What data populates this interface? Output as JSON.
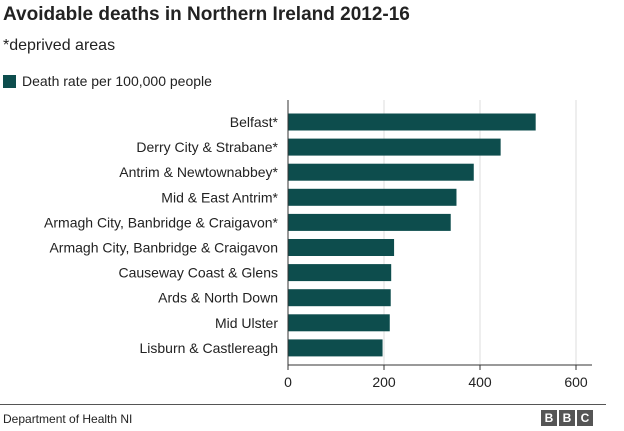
{
  "title": "Avoidable deaths in Northern Ireland 2012-16",
  "subtitle": "*deprived areas",
  "source": "Department of Health NI",
  "logo": [
    "B",
    "B",
    "C"
  ],
  "colors": {
    "bar": "#0d4d4d",
    "grid": "#dddddd",
    "axis": "#333333",
    "text": "#222222"
  },
  "chart_data": {
    "type": "bar",
    "orientation": "horizontal",
    "categories": [
      "Belfast*",
      "Derry City & Strabane*",
      "Antrim & Newtownabbey*",
      "Mid & East Antrim*",
      "Armagh City, Banbridge & Craigavon*",
      "Armagh City, Banbridge & Craigavon",
      "Causeway Coast & Glens",
      "Ards & North Down",
      "Mid Ulster",
      "Lisburn & Castlereagh"
    ],
    "series": [
      {
        "name": "Death rate per 100,000 people",
        "values": [
          516,
          443,
          387,
          351,
          339,
          221,
          215,
          214,
          212,
          197
        ]
      }
    ],
    "xlim": [
      0,
      600
    ],
    "xticks": [
      "0",
      "200",
      "400",
      "600"
    ],
    "grid": true,
    "legend": "top-left"
  }
}
